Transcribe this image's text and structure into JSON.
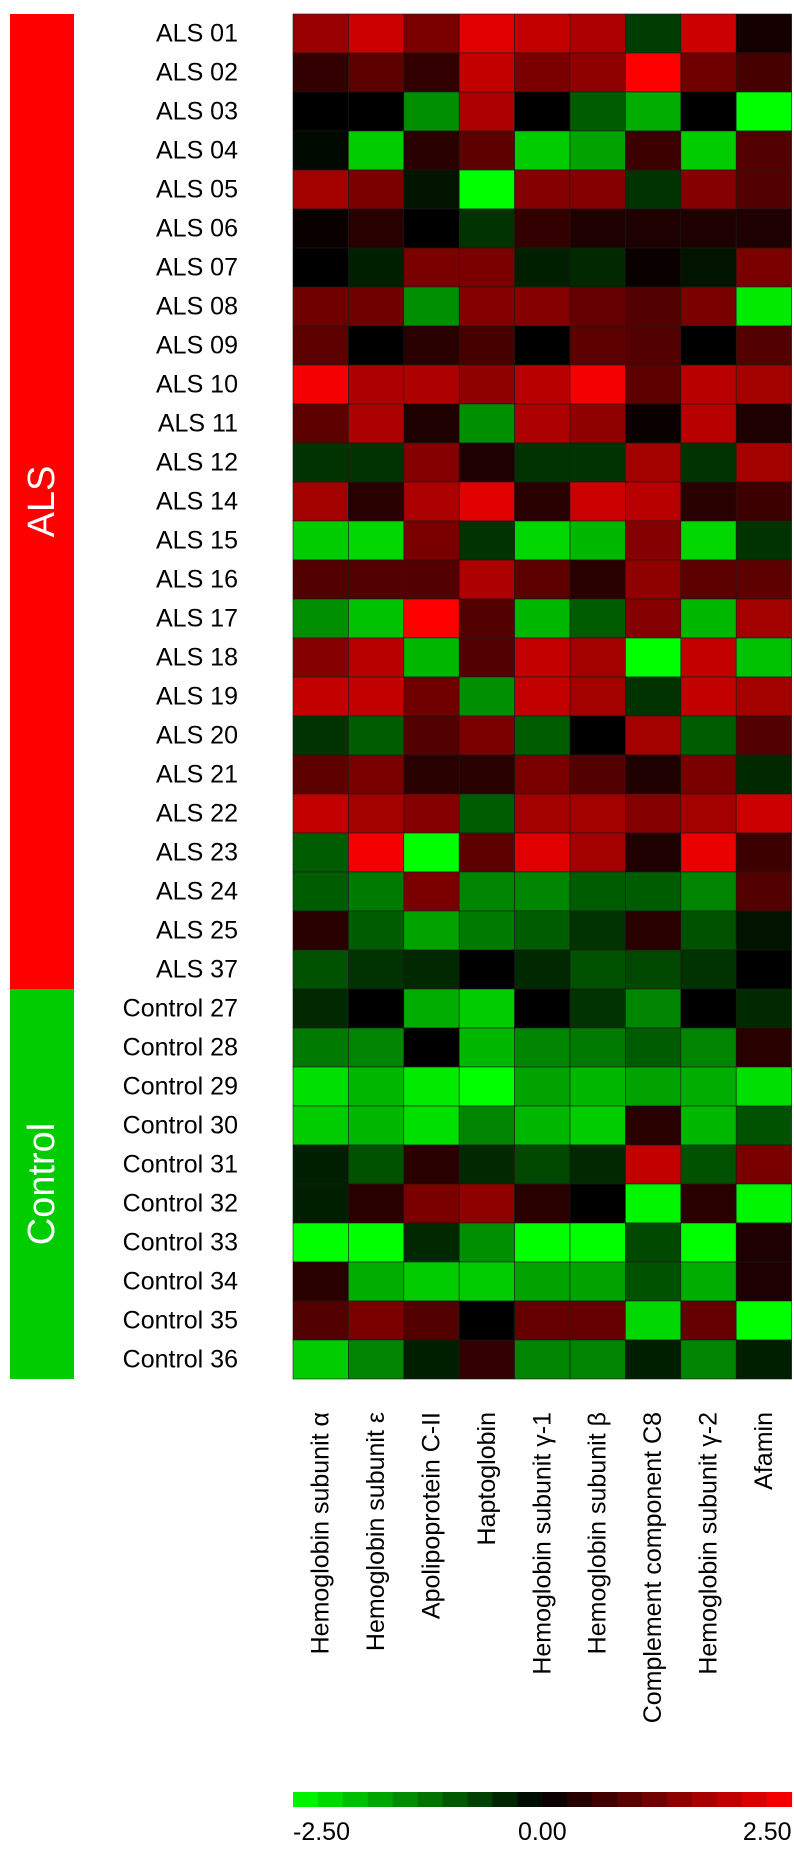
{
  "chart_data": {
    "type": "heatmap",
    "rows": [
      "ALS 01",
      "ALS 02",
      "ALS 03",
      "ALS 04",
      "ALS 05",
      "ALS 06",
      "ALS 07",
      "ALS 08",
      "ALS 09",
      "ALS 10",
      "ALS 11",
      "ALS 12",
      "ALS 14",
      "ALS 15",
      "ALS 16",
      "ALS 17",
      "ALS 18",
      "ALS 19",
      "ALS 20",
      "ALS 21",
      "ALS 22",
      "ALS 23",
      "ALS 24",
      "ALS 25",
      "ALS 37",
      "Control 27",
      "Control 28",
      "Control 29",
      "Control 30",
      "Control 31",
      "Control 32",
      "Control 33",
      "Control 34",
      "Control 35",
      "Control 36"
    ],
    "columns": [
      "Hemoglobin subunit α",
      "Hemoglobin subunit ε",
      "Apolipoprotein C-II",
      "Haptoglobin",
      "Hemoglobin subunit γ-1",
      "Hemoglobin subunit β",
      "Complement component C8",
      "Hemoglobin subunit γ-2",
      "Afamin"
    ],
    "groups": [
      {
        "label": "ALS",
        "color": "#ff0000",
        "count": 25
      },
      {
        "label": "Control",
        "color": "#00cc00",
        "count": 10
      }
    ],
    "values": [
      [
        1.5,
        2.0,
        1.2,
        2.2,
        1.9,
        1.7,
        -0.6,
        2.0,
        0.2
      ],
      [
        0.5,
        0.9,
        0.5,
        1.9,
        1.2,
        1.4,
        2.5,
        1.1,
        0.7
      ],
      [
        0.0,
        0.0,
        -1.4,
        1.7,
        0.0,
        -0.9,
        -1.7,
        0.0,
        -2.5
      ],
      [
        -0.1,
        -2.0,
        0.4,
        0.9,
        -2.0,
        -1.6,
        0.6,
        -2.0,
        0.8
      ],
      [
        1.6,
        1.2,
        -0.2,
        -2.5,
        1.3,
        1.3,
        -0.5,
        1.3,
        0.8
      ],
      [
        0.1,
        0.4,
        0.0,
        -0.5,
        0.5,
        0.3,
        0.3,
        0.3,
        0.3
      ],
      [
        0.0,
        -0.3,
        1.2,
        1.2,
        -0.3,
        -0.4,
        0.1,
        -0.2,
        1.2
      ],
      [
        1.1,
        1.1,
        -1.4,
        1.3,
        1.3,
        1.0,
        0.8,
        1.2,
        -2.3
      ],
      [
        0.9,
        0.0,
        0.4,
        0.7,
        0.0,
        0.9,
        0.8,
        0.0,
        0.8
      ],
      [
        2.4,
        1.7,
        1.7,
        1.4,
        1.8,
        2.4,
        0.9,
        1.8,
        1.6
      ],
      [
        0.9,
        1.7,
        0.3,
        -1.4,
        1.7,
        1.4,
        0.1,
        1.8,
        0.3
      ],
      [
        -0.5,
        -0.5,
        1.3,
        0.3,
        -0.5,
        -0.5,
        1.6,
        -0.5,
        1.6
      ],
      [
        1.6,
        0.4,
        1.7,
        2.2,
        0.4,
        2.0,
        1.8,
        0.4,
        0.6
      ],
      [
        -2.0,
        -2.1,
        1.2,
        -0.5,
        -2.1,
        -1.8,
        1.3,
        -2.1,
        -0.5
      ],
      [
        0.8,
        0.8,
        0.8,
        1.7,
        0.9,
        0.4,
        1.4,
        0.9,
        0.9
      ],
      [
        -1.4,
        -1.9,
        2.5,
        0.8,
        -1.8,
        -0.9,
        1.3,
        -1.8,
        1.6
      ],
      [
        1.3,
        1.8,
        -1.8,
        0.8,
        1.9,
        1.6,
        -2.5,
        1.9,
        -1.9
      ],
      [
        1.9,
        1.9,
        1.1,
        -1.4,
        1.9,
        1.6,
        -0.5,
        1.9,
        1.6
      ],
      [
        -0.5,
        -0.9,
        0.8,
        1.2,
        -0.9,
        0.0,
        1.6,
        -0.9,
        0.8
      ],
      [
        0.9,
        1.2,
        0.4,
        0.4,
        1.2,
        0.8,
        0.3,
        1.2,
        -0.4
      ],
      [
        1.9,
        1.6,
        1.3,
        -0.9,
        1.6,
        1.6,
        1.3,
        1.6,
        2.0
      ],
      [
        -0.9,
        2.4,
        -2.5,
        0.9,
        2.2,
        1.6,
        0.3,
        2.3,
        0.6
      ],
      [
        -0.9,
        -1.2,
        1.2,
        -1.3,
        -1.3,
        -0.9,
        -0.9,
        -1.3,
        0.8
      ],
      [
        0.4,
        -0.9,
        -1.6,
        -1.2,
        -0.9,
        -0.5,
        0.4,
        -0.8,
        -0.2
      ],
      [
        -0.8,
        -0.5,
        -0.4,
        0.0,
        -0.4,
        -0.8,
        -0.7,
        -0.5,
        0.0
      ],
      [
        -0.4,
        0.0,
        -1.7,
        -2.0,
        0.0,
        -0.5,
        -1.3,
        0.0,
        -0.4
      ],
      [
        -1.2,
        -1.3,
        0.0,
        -1.8,
        -1.3,
        -1.2,
        -0.9,
        -1.3,
        0.4
      ],
      [
        -2.2,
        -1.8,
        -2.3,
        -2.5,
        -1.6,
        -1.8,
        -1.6,
        -1.7,
        -2.2
      ],
      [
        -2.0,
        -1.8,
        -2.2,
        -1.3,
        -1.8,
        -2.0,
        0.4,
        -1.8,
        -0.8
      ],
      [
        -0.3,
        -0.8,
        0.4,
        -0.4,
        -0.7,
        -0.4,
        1.9,
        -0.8,
        1.2
      ],
      [
        -0.3,
        0.4,
        1.2,
        1.4,
        0.4,
        0.0,
        -2.4,
        0.4,
        -2.4
      ],
      [
        -2.5,
        -2.5,
        -0.4,
        -1.4,
        -2.5,
        -2.5,
        -0.7,
        -2.5,
        0.3
      ],
      [
        0.4,
        -1.7,
        -2.0,
        -2.0,
        -1.6,
        -1.6,
        -0.8,
        -1.7,
        0.3
      ],
      [
        0.8,
        1.2,
        0.8,
        0.0,
        1.0,
        1.0,
        -2.1,
        1.0,
        -2.5
      ],
      [
        -2.0,
        -1.3,
        -0.3,
        0.5,
        -1.3,
        -1.3,
        -0.3,
        -1.3,
        -0.3
      ]
    ],
    "color_scale": {
      "min": -2.5,
      "max": 2.5,
      "mid": 0.0,
      "min_color": "#00ff00",
      "mid_color": "#000000",
      "max_color": "#ff0000",
      "tick_labels": [
        "-2.50",
        "0.00",
        "2.50"
      ],
      "tick_values": [
        -2.5,
        0.0,
        2.5
      ]
    },
    "title": "",
    "xlabel": "",
    "ylabel": ""
  }
}
